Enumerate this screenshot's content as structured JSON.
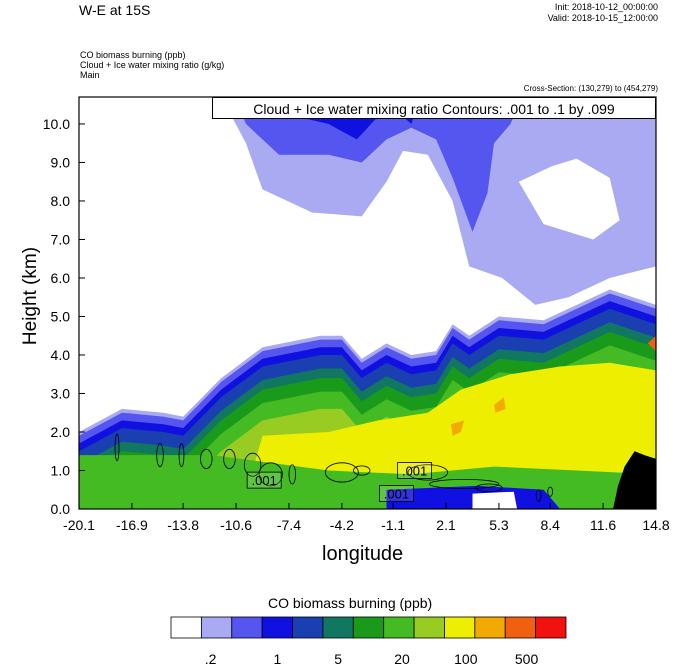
{
  "header": {
    "title": "W-E at 15S",
    "init": "Init: 2018-10-12_00:00:00",
    "valid": "Valid: 2018-10-15_12:00:00",
    "field1": "CO biomass burning   (ppb)",
    "field2": "Cloud + Ice water mixing ratio   (g/kg)",
    "field3": "Main",
    "cross_section": "Cross-Section: (130,279) to (454,279)",
    "contour_info": "Cloud + Ice water mixing ratio Contours: .001 to .1 by .099"
  },
  "colors": {
    "levels": [
      "#ffffff",
      "#aaaaf2",
      "#5555f0",
      "#1010e0",
      "#1a3fb0",
      "#117760",
      "#1a9a1a",
      "#44bb22",
      "#99cc22",
      "#eeee00",
      "#f2aa00",
      "#f06010",
      "#f21010"
    ],
    "terrain": "#000000"
  },
  "chart_data": {
    "type": "heatmap",
    "xlabel": "longitude",
    "ylabel": "Height (km)",
    "xlim": [
      -20.1,
      14.8
    ],
    "ylim": [
      0,
      10.7
    ],
    "x_ticks": [
      "-20.1",
      "-16.9",
      "-13.8",
      "-10.6",
      "-7.4",
      "-4.2",
      "-1.1",
      "2.1",
      "5.3",
      "8.4",
      "11.6",
      "14.8"
    ],
    "y_ticks": [
      "0.0",
      "1.0",
      "2.0",
      "3.0",
      "4.0",
      "5.0",
      "6.0",
      "7.0",
      "8.0",
      "9.0",
      "10.0"
    ],
    "colorbar_title": "CO biomass burning  (ppb)",
    "colorbar_labels": [
      ".2",
      "1",
      "5",
      "20",
      "100",
      "500"
    ],
    "contour_labels": [
      {
        "text": ".001",
        "lon": -8.9,
        "h": 0.75
      },
      {
        "text": ".001",
        "lon": -0.9,
        "h": 0.4
      },
      {
        "text": ".001",
        "lon": 0.2,
        "h": 1.0
      }
    ],
    "plume_top_km": [
      [
        -20.1,
        2.0
      ],
      [
        -17.5,
        2.6
      ],
      [
        -15,
        2.5
      ],
      [
        -13.8,
        2.4
      ],
      [
        -11.5,
        3.4
      ],
      [
        -9,
        4.2
      ],
      [
        -5.5,
        4.5
      ],
      [
        -4.2,
        4.5
      ],
      [
        -3,
        3.9
      ],
      [
        -1.5,
        4.3
      ],
      [
        0,
        4.0
      ],
      [
        1.5,
        4.1
      ],
      [
        2.5,
        4.8
      ],
      [
        3.5,
        4.5
      ],
      [
        5.3,
        5.0
      ],
      [
        8,
        4.9
      ],
      [
        9.5,
        5.2
      ],
      [
        12,
        5.7
      ],
      [
        14.8,
        5.3
      ]
    ]
  }
}
